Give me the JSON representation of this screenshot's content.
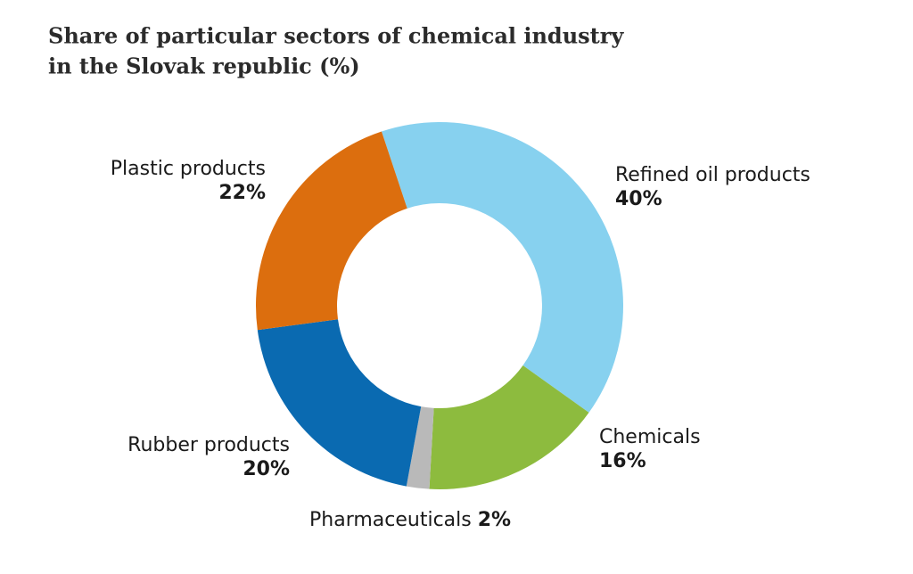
{
  "chart_data": {
    "type": "donut",
    "title": [
      "Share of particular sectors of chemical industry",
      "in the Slovak republic (%)"
    ],
    "categories": [
      "Refined oil products",
      "Chemicals",
      "Pharmaceuticals",
      "Rubber products",
      "Plastic products"
    ],
    "values": [
      40,
      16,
      2,
      20,
      22
    ],
    "value_labels": [
      "40%",
      "16%",
      "2%",
      "20%",
      "22%"
    ],
    "colors": [
      "#87d1ef",
      "#8dbb3e",
      "#b9b9b9",
      "#0a6ab1",
      "#dc6e0e"
    ]
  }
}
